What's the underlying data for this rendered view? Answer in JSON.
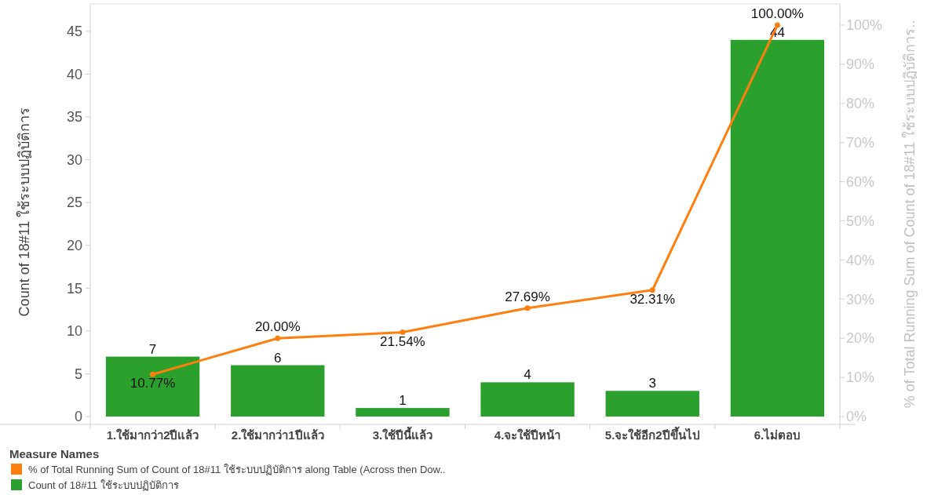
{
  "chart_data": {
    "type": "bar",
    "categories": [
      "1.ใช้มากว่า2ปีแล้ว",
      "2.ใช้มากว่า1ปีแล้ว",
      "3.ใช้ปีนี้แล้ว",
      "4.จะใช้ปีหน้า",
      "5.จะใช้อีก2ปีขึ้นไป",
      "6.ไม่ตอบ"
    ],
    "series": [
      {
        "name": "% of Total Running Sum of Count of 18#11 ใช้ระบบปฏิบัติการ along Table (Across then Dow..",
        "type": "line",
        "axis": "y2",
        "color": "#ff7f0e",
        "values": [
          10.77,
          20,
          21.54,
          27.69,
          32.31,
          100
        ],
        "value_labels": [
          "10.77%",
          "20.00%",
          "21.54%",
          "27.69%",
          "32.31%",
          "100.00%"
        ]
      },
      {
        "name": "Count of 18#11 ใช้ระบบปฏิบัติการ",
        "color": "#2ca02c",
        "values": [
          7,
          6,
          1,
          4,
          3,
          44
        ]
      }
    ],
    "ylabel": "Count of 18#11 ใช้ระบบปฏิบัติการ",
    "y2label": "% of Total Running Sum of Count of 18#11 ใช้ระบบปฏิบัติการ..",
    "legend_title": "Measure Names",
    "ylim": [
      0,
      48.2
    ],
    "yticks": [
      0,
      5,
      10,
      15,
      20,
      25,
      30,
      35,
      40,
      45
    ],
    "y2lim": [
      0,
      105.4
    ],
    "y2ticks": [
      {
        "value": 0,
        "label": "0%"
      },
      {
        "value": 10,
        "label": "10%"
      },
      {
        "value": 20,
        "label": "20%"
      },
      {
        "value": 30,
        "label": "30%"
      },
      {
        "value": 40,
        "label": "40%"
      },
      {
        "value": 50,
        "label": "50%"
      },
      {
        "value": 60,
        "label": "60%"
      },
      {
        "value": 70,
        "label": "70%"
      },
      {
        "value": 80,
        "label": "80%"
      },
      {
        "value": 90,
        "label": "90%"
      },
      {
        "value": 100,
        "label": "100%"
      }
    ],
    "data_labels": true,
    "marker": "circle",
    "legend": "bottom",
    "grid": false
  }
}
